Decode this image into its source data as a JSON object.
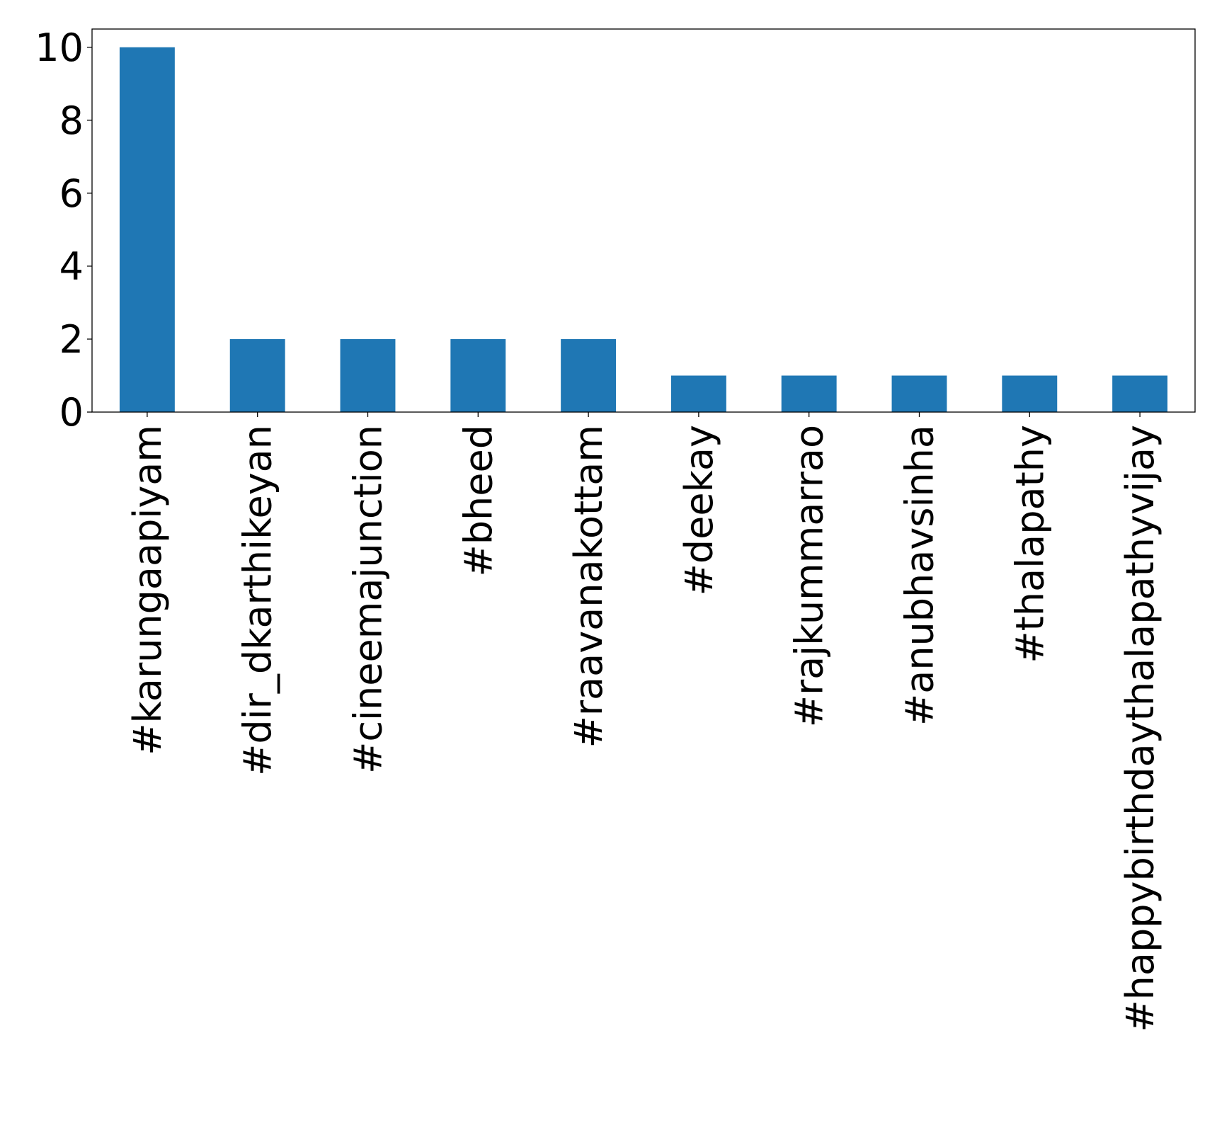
{
  "chart_data": {
    "type": "bar",
    "categories": [
      "#karungaapiyam",
      "#dir_dkarthikeyan",
      "#cineemajunction",
      "#bheed",
      "#raavanakottam",
      "#deekay",
      "#rajkummarrao",
      "#anubhavsinha",
      "#thalapathy",
      "#happybirthdaythalapathyvijay"
    ],
    "values": [
      10,
      2,
      2,
      2,
      2,
      1,
      1,
      1,
      1,
      1
    ],
    "ylim": [
      0,
      10.5
    ],
    "yticks": [
      0,
      2,
      4,
      6,
      8,
      10
    ],
    "title": "",
    "xlabel": "",
    "ylabel": "",
    "grid": false,
    "legend": "none",
    "bar_color": "#1f77b4"
  }
}
